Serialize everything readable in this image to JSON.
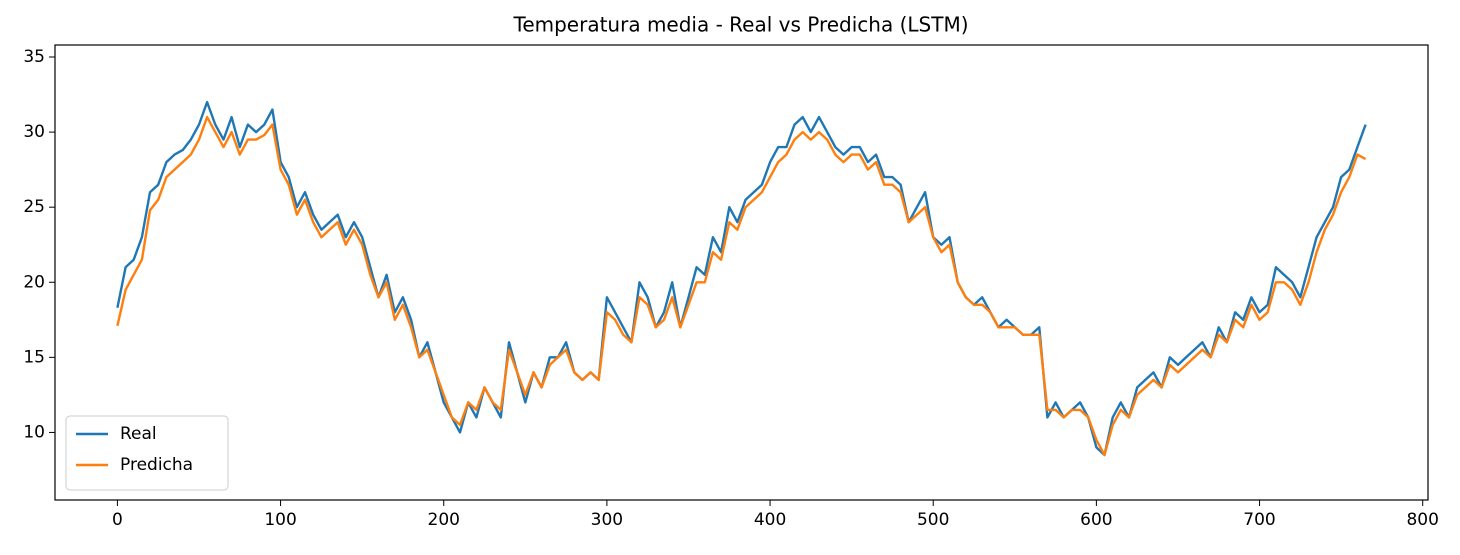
{
  "chart_data": {
    "type": "line",
    "title": "Temperatura media - Real vs Predicha (LSTM)",
    "x": [
      0,
      5,
      10,
      15,
      20,
      25,
      30,
      35,
      40,
      45,
      50,
      55,
      60,
      65,
      70,
      75,
      80,
      85,
      90,
      95,
      100,
      105,
      110,
      115,
      120,
      125,
      130,
      135,
      140,
      145,
      150,
      155,
      160,
      165,
      170,
      175,
      180,
      185,
      190,
      195,
      200,
      205,
      210,
      215,
      220,
      225,
      230,
      235,
      240,
      245,
      250,
      255,
      260,
      265,
      270,
      275,
      280,
      285,
      290,
      295,
      300,
      305,
      310,
      315,
      320,
      325,
      330,
      335,
      340,
      345,
      350,
      355,
      360,
      365,
      370,
      375,
      380,
      385,
      390,
      395,
      400,
      405,
      410,
      415,
      420,
      425,
      430,
      435,
      440,
      445,
      450,
      455,
      460,
      465,
      470,
      475,
      480,
      485,
      490,
      495,
      500,
      505,
      510,
      515,
      520,
      525,
      530,
      535,
      540,
      545,
      550,
      555,
      560,
      565,
      570,
      575,
      580,
      585,
      590,
      595,
      600,
      605,
      610,
      615,
      620,
      625,
      630,
      635,
      640,
      645,
      650,
      655,
      660,
      665,
      670,
      675,
      680,
      685,
      690,
      695,
      700,
      705,
      710,
      715,
      720,
      725,
      730,
      735,
      740,
      745,
      750,
      755,
      760,
      765
    ],
    "series": [
      {
        "name": "Real",
        "color": "#1f77b4",
        "values": [
          18.3,
          21,
          21.5,
          23,
          26,
          26.5,
          28,
          28.5,
          28.8,
          29.5,
          30.5,
          32,
          30.5,
          29.5,
          31,
          29,
          30.5,
          30,
          30.5,
          31.5,
          28,
          27,
          25,
          26,
          24.5,
          23.5,
          24,
          24.5,
          23,
          24,
          23,
          21,
          19,
          20.5,
          18,
          19,
          17.5,
          15,
          16,
          14,
          12,
          11,
          10,
          12,
          11,
          13,
          12,
          11,
          16,
          14,
          12,
          14,
          13,
          15,
          15,
          16,
          14,
          13.5,
          14,
          13.5,
          19,
          18,
          17,
          16,
          20,
          19,
          17,
          18,
          20,
          17,
          19,
          21,
          20.5,
          23,
          22,
          25,
          24,
          25.5,
          26,
          26.5,
          28,
          29,
          29,
          30.5,
          31,
          30,
          31,
          30,
          29,
          28.5,
          29,
          29,
          28,
          28.5,
          27,
          27,
          26.5,
          24,
          25,
          26,
          23,
          22.5,
          23,
          20,
          19,
          18.5,
          19,
          18,
          17,
          17.5,
          17,
          16.5,
          16.5,
          17,
          11,
          12,
          11,
          11.5,
          12,
          11,
          9,
          8.5,
          11,
          12,
          11,
          13,
          13.5,
          14,
          13,
          15,
          14.5,
          15,
          15.5,
          16,
          15,
          17,
          16,
          18,
          17.5,
          19,
          18,
          18.5,
          21,
          20.5,
          20,
          19,
          21,
          23,
          24,
          25,
          27,
          27.5,
          29,
          30.5
        ]
      },
      {
        "name": "Predicha",
        "color": "#ff7f0e",
        "values": [
          17.1,
          19.5,
          20.5,
          21.5,
          24.8,
          25.5,
          27,
          27.5,
          28,
          28.5,
          29.5,
          31,
          30,
          29,
          30,
          28.5,
          29.5,
          29.5,
          29.8,
          30.5,
          27.5,
          26.5,
          24.5,
          25.5,
          24,
          23,
          23.5,
          24,
          22.5,
          23.5,
          22.5,
          20.5,
          19,
          20,
          17.5,
          18.5,
          17,
          15,
          15.5,
          14,
          12.5,
          11,
          10.5,
          12,
          11.5,
          13,
          12,
          11.5,
          15.5,
          14,
          12.5,
          14,
          13,
          14.5,
          15,
          15.5,
          14,
          13.5,
          14,
          13.5,
          18,
          17.5,
          16.5,
          16,
          19,
          18.5,
          17,
          17.5,
          19,
          17,
          18.5,
          20,
          20,
          22,
          21.5,
          24,
          23.5,
          25,
          25.5,
          26,
          27,
          28,
          28.5,
          29.5,
          30,
          29.5,
          30,
          29.5,
          28.5,
          28,
          28.5,
          28.5,
          27.5,
          28,
          26.5,
          26.5,
          26,
          24,
          24.5,
          25,
          23,
          22,
          22.5,
          20,
          19,
          18.5,
          18.5,
          18,
          17,
          17,
          17,
          16.5,
          16.5,
          16.5,
          11.5,
          11.5,
          11,
          11.5,
          11.5,
          11,
          9.5,
          8.5,
          10.5,
          11.5,
          11,
          12.5,
          13,
          13.5,
          13,
          14.5,
          14,
          14.5,
          15,
          15.5,
          15,
          16.5,
          16,
          17.5,
          17,
          18.5,
          17.5,
          18,
          20,
          20,
          19.5,
          18.5,
          20,
          22,
          23.5,
          24.5,
          26,
          27,
          28.5,
          28.2
        ]
      }
    ],
    "xlim": [
      -38.25,
      803.25
    ],
    "xticks": [
      0,
      100,
      200,
      300,
      400,
      500,
      600,
      700,
      800
    ],
    "ylim": [
      5.5,
      35.8
    ],
    "yticks": [
      10,
      15,
      20,
      25,
      30,
      35
    ],
    "legend": "lower left"
  }
}
